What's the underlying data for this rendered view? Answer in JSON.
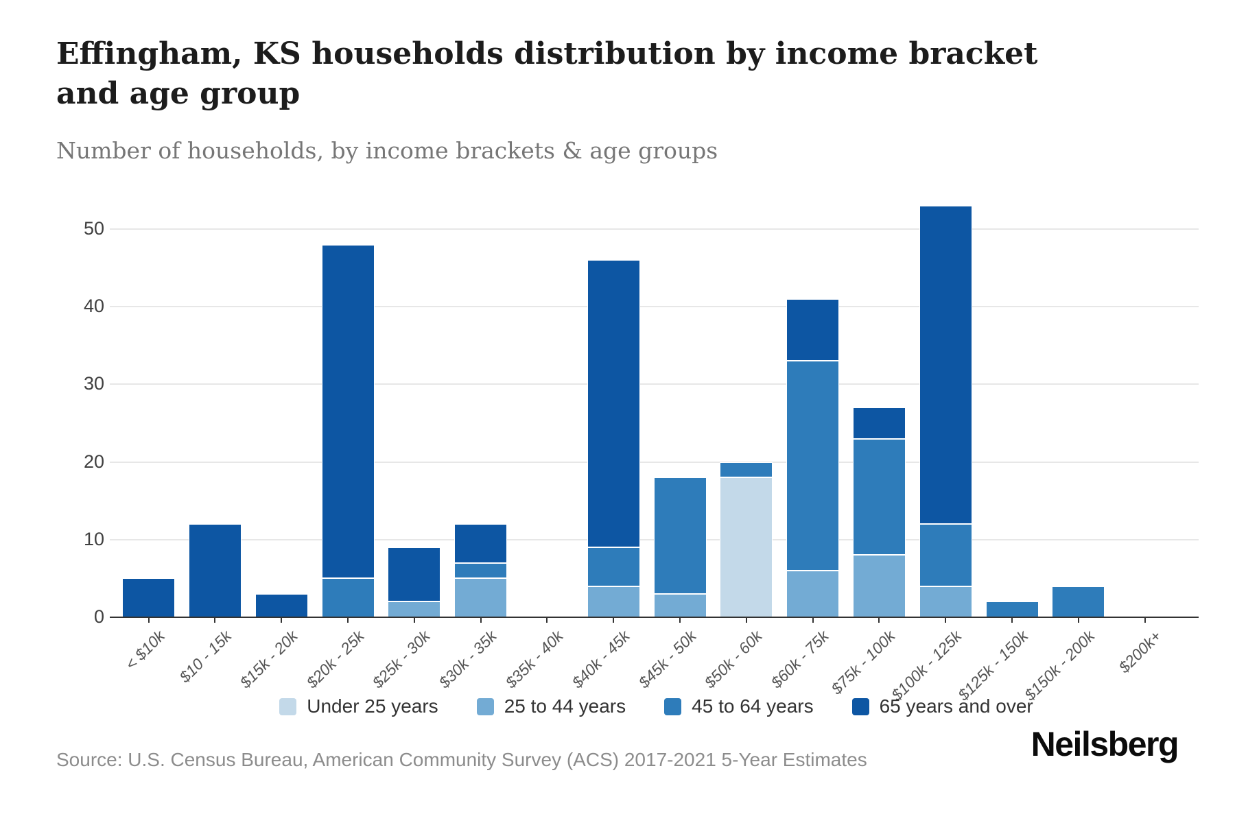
{
  "header": {
    "title": "Effingham, KS households distribution by income bracket and age group",
    "subtitle": "Number of households, by income brackets & age groups"
  },
  "chart_data": {
    "type": "bar",
    "stacked": true,
    "title": "Effingham, KS households distribution by income bracket and age group",
    "subtitle": "Number of households, by income brackets & age groups",
    "xlabel": "",
    "ylabel": "",
    "ylim": [
      0,
      55
    ],
    "yticks": [
      0,
      10,
      20,
      30,
      40,
      50
    ],
    "grid": true,
    "legend_position": "bottom",
    "categories": [
      "< $10k",
      "$10 - 15k",
      "$15k - 20k",
      "$20k - 25k",
      "$25k - 30k",
      "$30k - 35k",
      "$35k - 40k",
      "$40k - 45k",
      "$45k - 50k",
      "$50k - 60k",
      "$60k - 75k",
      "$75k - 100k",
      "$100k - 125k",
      "$125k - 150k",
      "$150k - 200k",
      "$200k+"
    ],
    "series": [
      {
        "name": "Under 25 years",
        "color": "#c3d9e9",
        "values": [
          0,
          0,
          0,
          0,
          0,
          0,
          0,
          0,
          0,
          18,
          0,
          0,
          0,
          0,
          0,
          0
        ]
      },
      {
        "name": "25 to 44 years",
        "color": "#73abd4",
        "values": [
          0,
          0,
          0,
          0,
          2,
          5,
          0,
          4,
          3,
          0,
          6,
          8,
          4,
          0,
          0,
          0
        ]
      },
      {
        "name": "45 to 64 years",
        "color": "#2e7cba",
        "values": [
          0,
          0,
          0,
          5,
          0,
          2,
          0,
          5,
          15,
          2,
          27,
          15,
          8,
          2,
          4,
          0
        ]
      },
      {
        "name": "65 years and over",
        "color": "#0d56a3",
        "values": [
          5,
          12,
          3,
          43,
          7,
          5,
          0,
          37,
          0,
          0,
          8,
          4,
          41,
          0,
          0,
          0
        ]
      }
    ],
    "totals": [
      5,
      12,
      3,
      48,
      9,
      12,
      0,
      46,
      18,
      20,
      41,
      27,
      53,
      2,
      4,
      0
    ]
  },
  "footer": {
    "source": "Source: U.S. Census Bureau, American Community Survey (ACS) 2017-2021 5-Year Estimates",
    "brand": "Neilsberg"
  }
}
